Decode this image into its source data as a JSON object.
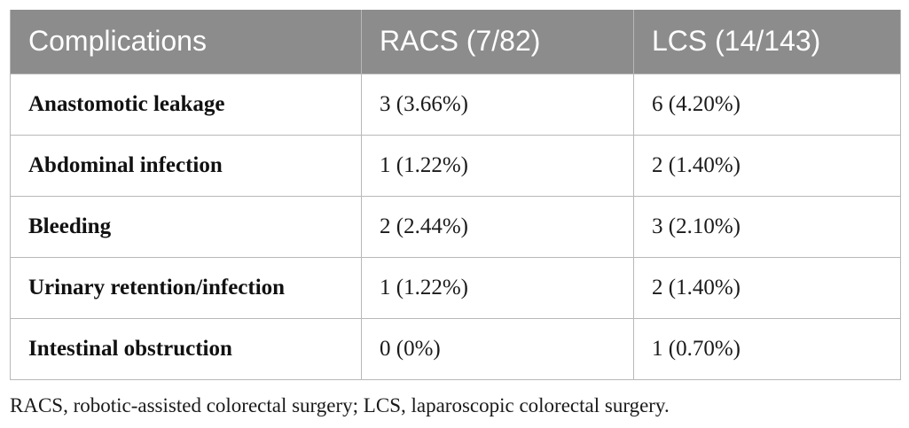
{
  "table": {
    "headers": [
      "Complications",
      "RACS (7/82)",
      "LCS (14/143)"
    ],
    "rows": [
      [
        "Anastomotic leakage",
        "3 (3.66%)",
        "6 (4.20%)"
      ],
      [
        "Abdominal infection",
        "1 (1.22%)",
        "2 (1.40%)"
      ],
      [
        "Bleeding",
        "2 (2.44%)",
        "3 (2.10%)"
      ],
      [
        "Urinary retention/infection",
        "1 (1.22%)",
        "2 (1.40%)"
      ],
      [
        "Intestinal obstruction",
        "0 (0%)",
        "1 (0.70%)"
      ]
    ]
  },
  "footnote": "RACS, robotic-assisted colorectal surgery; LCS, laparoscopic colorectal surgery.",
  "colors": {
    "header_bg": "#8c8c8c",
    "header_text": "#ffffff",
    "grid": "#b8b8b8"
  }
}
